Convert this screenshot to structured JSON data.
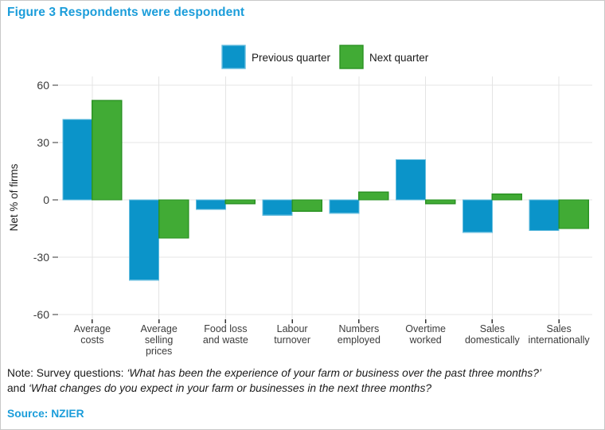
{
  "figure": {
    "title": "Figure 3 Respondents were despondent"
  },
  "note": {
    "prefix": "Note: Survey questions: ",
    "question1": "‘What has been the experience of your farm or business over the past three months?’",
    "connector": "and ",
    "question2": "‘What changes do you expect in your farm or businesses in the next three months?"
  },
  "source": {
    "label": "Source: NZIER"
  },
  "colors": {
    "accent_blue": "#1b9dda",
    "bar_blue": "#0b94c9",
    "bar_blue_stroke": "#63bcde",
    "bar_green": "#41ab35",
    "bar_green_stroke": "#2b9324",
    "grid": "#e4e4e4",
    "axis_text": "#3c3c3c"
  },
  "chart_data": {
    "type": "bar",
    "title": "",
    "xlabel": "",
    "ylabel": "Net % of firms",
    "ylim": [
      -62,
      64
    ],
    "yticks": [
      60,
      30,
      0,
      -30,
      -60
    ],
    "grid": "on",
    "legend_position": "top-center",
    "categories": [
      "Average costs",
      "Average selling prices",
      "Food loss and waste",
      "Labour turnover",
      "Numbers employed",
      "Overtime worked",
      "Sales domestically",
      "Sales internationally"
    ],
    "category_label_lines": [
      [
        "Average",
        "costs"
      ],
      [
        "Average",
        "selling",
        "prices"
      ],
      [
        "Food loss",
        "and waste"
      ],
      [
        "Labour",
        "turnover"
      ],
      [
        "Numbers",
        "employed"
      ],
      [
        "Overtime",
        "worked"
      ],
      [
        "Sales",
        "domestically"
      ],
      [
        "Sales",
        "internationally"
      ]
    ],
    "series": [
      {
        "name": "Previous quarter",
        "color": "#0b94c9",
        "values": [
          42,
          -42,
          -5,
          -8,
          -7,
          21,
          -17,
          -16
        ]
      },
      {
        "name": "Next quarter",
        "color": "#41ab35",
        "values": [
          52,
          -20,
          -2,
          -6,
          4,
          -2,
          3,
          -15
        ]
      }
    ]
  }
}
